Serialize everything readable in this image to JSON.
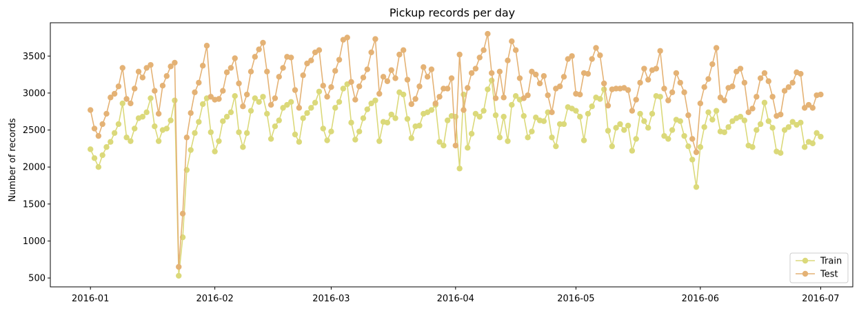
{
  "chart_data": {
    "type": "line",
    "title": "Pickup records per day",
    "xlabel": "",
    "ylabel": "Number of records",
    "x_axis_type": "date",
    "xlim": [
      "2015-12-22",
      "2016-07-09"
    ],
    "ylim": [
      380,
      3950
    ],
    "grid": false,
    "legend_position": "lower-right",
    "x_ticks": [
      "2016-01-01",
      "2016-02-01",
      "2016-03-01",
      "2016-04-01",
      "2016-05-01",
      "2016-06-01",
      "2016-07-01"
    ],
    "x_tick_labels": [
      "2016-01",
      "2016-02",
      "2016-03",
      "2016-04",
      "2016-05",
      "2016-06",
      "2016-07"
    ],
    "y_ticks": [
      500,
      1000,
      1500,
      2000,
      2500,
      3000,
      3500
    ],
    "y_tick_labels": [
      "500",
      "1000",
      "1500",
      "2000",
      "2500",
      "3000",
      "3500"
    ],
    "start_date": "2016-01-01",
    "series": [
      {
        "name": "Train",
        "color": "#dbd97a",
        "values": [
          2240,
          2120,
          2000,
          2160,
          2270,
          2340,
          2460,
          2580,
          2860,
          2400,
          2350,
          2520,
          2660,
          2680,
          2740,
          2930,
          2550,
          2350,
          2500,
          2520,
          2630,
          2900,
          530,
          1050,
          1960,
          2230,
          2460,
          2610,
          2850,
          2930,
          2470,
          2210,
          2350,
          2620,
          2680,
          2740,
          2960,
          2470,
          2270,
          2460,
          2760,
          2930,
          2880,
          2950,
          2720,
          2380,
          2550,
          2630,
          2800,
          2840,
          2880,
          2440,
          2340,
          2660,
          2730,
          2800,
          2870,
          3020,
          2520,
          2360,
          2480,
          2800,
          2880,
          3060,
          3120,
          2600,
          2370,
          2480,
          2660,
          2780,
          2860,
          2900,
          2350,
          2610,
          2600,
          2710,
          2660,
          3010,
          2980,
          2650,
          2390,
          2550,
          2560,
          2720,
          2740,
          2770,
          2840,
          2340,
          2290,
          2630,
          2690,
          2680,
          1980,
          2980,
          2260,
          2450,
          2720,
          2680,
          2760,
          3050,
          3170,
          2700,
          2400,
          2680,
          2350,
          2840,
          2960,
          2910,
          2690,
          2400,
          2480,
          2670,
          2630,
          2620,
          2740,
          2400,
          2280,
          2580,
          2580,
          2810,
          2790,
          2760,
          2680,
          2360,
          2720,
          2820,
          2940,
          2920,
          3050,
          2490,
          2280,
          2530,
          2580,
          2500,
          2560,
          2220,
          2380,
          2720,
          2620,
          2530,
          2720,
          2960,
          2950,
          2420,
          2380,
          2500,
          2640,
          2620,
          2420,
          2280,
          2100,
          1730,
          2270,
          2540,
          2740,
          2640,
          2760,
          2480,
          2470,
          2540,
          2620,
          2660,
          2680,
          2630,
          2290,
          2270,
          2500,
          2580,
          2870,
          2620,
          2530,
          2210,
          2190,
          2500,
          2540,
          2610,
          2570,
          2600,
          2270,
          2340,
          2320,
          2460,
          2410
        ]
      },
      {
        "name": "Test",
        "color": "#e4b275",
        "values": [
          2770,
          2520,
          2420,
          2580,
          2720,
          2940,
          2990,
          3090,
          3340,
          2920,
          2860,
          3060,
          3290,
          3210,
          3340,
          3380,
          3030,
          2720,
          3100,
          3230,
          3360,
          3410,
          650,
          1370,
          2400,
          2730,
          3010,
          3140,
          3370,
          3640,
          2950,
          2910,
          2920,
          3030,
          3280,
          3340,
          3470,
          3130,
          2820,
          2980,
          3290,
          3490,
          3590,
          3680,
          3290,
          2840,
          2930,
          3220,
          3340,
          3490,
          3480,
          3040,
          2800,
          3240,
          3400,
          3440,
          3550,
          3580,
          3100,
          2950,
          3080,
          3300,
          3450,
          3720,
          3750,
          3150,
          2910,
          3090,
          3210,
          3320,
          3550,
          3730,
          2990,
          3220,
          3160,
          3310,
          3200,
          3520,
          3580,
          3180,
          2850,
          2920,
          3090,
          3350,
          3220,
          3320,
          2860,
          2950,
          3060,
          3060,
          3200,
          2290,
          3520,
          2770,
          3070,
          3270,
          3330,
          3480,
          3580,
          3800,
          3270,
          2930,
          3290,
          2940,
          3440,
          3700,
          3580,
          3200,
          2930,
          2970,
          3290,
          3250,
          3130,
          3230,
          2970,
          2740,
          3060,
          3090,
          3220,
          3460,
          3500,
          2990,
          2980,
          3270,
          3260,
          3460,
          3610,
          3510,
          3130,
          2830,
          3050,
          3060,
          3060,
          3070,
          3040,
          2760,
          2910,
          3140,
          3330,
          3180,
          3310,
          3330,
          3570,
          3060,
          2900,
          3010,
          3270,
          3140,
          3010,
          2700,
          2380,
          2200,
          2860,
          3080,
          3190,
          3390,
          3610,
          2940,
          2900,
          3070,
          3090,
          3290,
          3330,
          3140,
          2740,
          2790,
          2950,
          3200,
          3270,
          3160,
          2950,
          2690,
          2710,
          3030,
          3080,
          3140,
          3280,
          3260,
          2800,
          2840,
          2800,
          2970,
          2980
        ]
      }
    ]
  }
}
